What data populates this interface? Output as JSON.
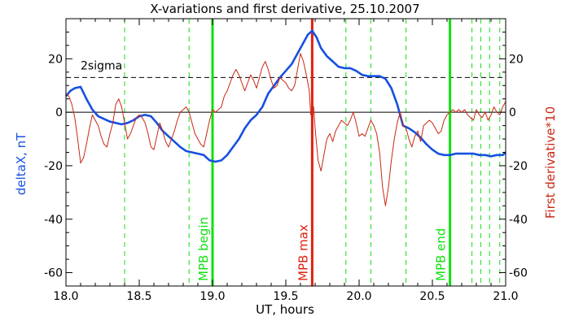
{
  "chart_data": {
    "type": "line",
    "title": "X-variations and first derivative, 25.10.2007",
    "xlabel": "UT, hours",
    "ylabel_left": "deltaX, nT",
    "ylabel_right": "First derivative*10",
    "xlim": [
      18.0,
      21.0
    ],
    "ylim": [
      -65,
      35
    ],
    "x_ticks": [
      18.0,
      18.5,
      19.0,
      19.5,
      20.0,
      20.5,
      21.0
    ],
    "x_tick_labels": [
      "18.0",
      "18.5",
      "19.0",
      "19.5",
      "20.0",
      "20.5",
      "21.0"
    ],
    "y_ticks": [
      -60,
      -40,
      -20,
      0,
      20
    ],
    "y_tick_labels": [
      "-60",
      "-40",
      "-20",
      "0",
      "20"
    ],
    "y2_tick_labels": [
      "-60",
      "-40",
      "-20",
      "0",
      "20"
    ],
    "colors": {
      "deltaX": "#1650e0",
      "derivative": "#c82814",
      "green": "#10e010",
      "red_marker": "#e02010",
      "axis": "#000000"
    },
    "reference_lines": [
      {
        "y": 0,
        "style": "solid"
      },
      {
        "y": 13,
        "style": "dashed",
        "label": "2sigma"
      }
    ],
    "markers": [
      {
        "x": 19.0,
        "label": "MPB begin",
        "color": "#10e010"
      },
      {
        "x": 19.68,
        "label": "MPB max",
        "color": "#e02010"
      },
      {
        "x": 20.62,
        "label": "MPB end",
        "color": "#10e010"
      }
    ],
    "dashed_verticals": [
      18.4,
      18.84,
      19.91,
      20.08,
      20.32,
      20.77,
      20.83,
      20.89,
      20.96
    ],
    "series": [
      {
        "key": "deltaX",
        "axis": "left",
        "x": [
          18.0,
          18.03,
          18.06,
          18.1,
          18.14,
          18.18,
          18.22,
          18.26,
          18.3,
          18.34,
          18.38,
          18.42,
          18.46,
          18.5,
          18.54,
          18.58,
          18.62,
          18.66,
          18.7,
          18.74,
          18.78,
          18.82,
          18.86,
          18.9,
          18.94,
          18.98,
          19.02,
          19.06,
          19.1,
          19.14,
          19.18,
          19.22,
          19.26,
          19.3,
          19.34,
          19.38,
          19.42,
          19.46,
          19.5,
          19.54,
          19.58,
          19.62,
          19.65,
          19.68,
          19.71,
          19.74,
          19.78,
          19.82,
          19.86,
          19.9,
          19.94,
          19.98,
          20.02,
          20.06,
          20.1,
          20.14,
          20.18,
          20.22,
          20.26,
          20.3,
          20.34,
          20.38,
          20.42,
          20.46,
          20.5,
          20.54,
          20.58,
          20.62,
          20.66,
          20.7,
          20.74,
          20.78,
          20.82,
          20.86,
          20.9,
          20.94,
          20.98,
          21.0
        ],
        "y": [
          6,
          8,
          9,
          9.5,
          5,
          1,
          -1.5,
          -2.5,
          -3.5,
          -4,
          -4.5,
          -4,
          -3,
          -1.5,
          -1,
          -1.5,
          -4,
          -7,
          -9,
          -11,
          -13,
          -14.5,
          -15,
          -15.5,
          -16,
          -18,
          -18.5,
          -18,
          -16,
          -13,
          -10,
          -6,
          -3,
          -1,
          2,
          7,
          10,
          13,
          15.5,
          18,
          22,
          26,
          29,
          30.5,
          28,
          24,
          21,
          19,
          17,
          16.5,
          16.5,
          15.5,
          14,
          13.5,
          13.5,
          13.5,
          12.5,
          9,
          3,
          -5,
          -6,
          -7.5,
          -9.5,
          -12,
          -14,
          -15.5,
          -16,
          -16,
          -15.5,
          -15.5,
          -15.5,
          -15.5,
          -16,
          -16,
          -16.5,
          -16,
          -16,
          -15
        ]
      },
      {
        "key": "derivative",
        "axis": "right",
        "x": [
          18.0,
          18.02,
          18.04,
          18.06,
          18.08,
          18.1,
          18.12,
          18.14,
          18.16,
          18.18,
          18.2,
          18.22,
          18.24,
          18.26,
          18.28,
          18.3,
          18.32,
          18.34,
          18.36,
          18.38,
          18.4,
          18.42,
          18.44,
          18.46,
          18.48,
          18.5,
          18.52,
          18.54,
          18.56,
          18.58,
          18.6,
          18.62,
          18.64,
          18.66,
          18.68,
          18.7,
          18.72,
          18.74,
          18.76,
          18.78,
          18.8,
          18.82,
          18.84,
          18.86,
          18.88,
          18.9,
          18.92,
          18.94,
          18.96,
          18.98,
          19.0,
          19.02,
          19.04,
          19.06,
          19.08,
          19.1,
          19.12,
          19.14,
          19.16,
          19.18,
          19.2,
          19.22,
          19.24,
          19.26,
          19.28,
          19.3,
          19.32,
          19.34,
          19.36,
          19.38,
          19.4,
          19.42,
          19.44,
          19.46,
          19.48,
          19.5,
          19.52,
          19.54,
          19.56,
          19.58,
          19.6,
          19.62,
          19.64,
          19.66,
          19.67,
          19.68,
          19.69,
          19.7,
          19.72,
          19.74,
          19.76,
          19.78,
          19.8,
          19.82,
          19.84,
          19.86,
          19.88,
          19.9,
          19.92,
          19.94,
          19.96,
          19.98,
          20.0,
          20.02,
          20.04,
          20.06,
          20.08,
          20.1,
          20.12,
          20.14,
          20.16,
          20.18,
          20.2,
          20.22,
          20.24,
          20.26,
          20.28,
          20.3,
          20.32,
          20.34,
          20.36,
          20.38,
          20.4,
          20.42,
          20.44,
          20.46,
          20.48,
          20.5,
          20.52,
          20.54,
          20.56,
          20.58,
          20.6,
          20.62,
          20.64,
          20.66,
          20.68,
          20.7,
          20.72,
          20.74,
          20.76,
          20.78,
          20.8,
          20.82,
          20.84,
          20.86,
          20.88,
          20.9,
          20.92,
          20.94,
          20.96,
          20.98,
          21.0
        ],
        "y": [
          7,
          6,
          3,
          -2,
          -10,
          -19,
          -17,
          -12,
          -6,
          -1,
          -3,
          -5,
          -9,
          -12,
          -13,
          -8,
          -4,
          3,
          5,
          2,
          -4,
          -10,
          -8,
          -5,
          -2,
          -1,
          -2,
          -4,
          -8,
          -13,
          -14,
          -9,
          -4,
          -7,
          -11,
          -13,
          -10,
          -7,
          -3,
          0,
          1,
          2,
          0,
          -4,
          -8,
          -10,
          -12,
          -13,
          -8,
          -3,
          1,
          0,
          1,
          2,
          6,
          8,
          11,
          14,
          16,
          14,
          11,
          8,
          11,
          14,
          12,
          9,
          13,
          17,
          19,
          16,
          12,
          9,
          10,
          13,
          12,
          11,
          9,
          8,
          10,
          16,
          22,
          19,
          14,
          8,
          -1,
          0,
          2,
          -6,
          -18,
          -22,
          -16,
          -10,
          -8,
          -11,
          -7,
          -5,
          -3,
          -4,
          -5,
          -3,
          0,
          -4,
          -9,
          -8,
          -9,
          -6,
          -3,
          -5,
          -8,
          -15,
          -28,
          -35,
          -28,
          -18,
          -10,
          -4,
          0,
          -5,
          -6,
          -10,
          -13,
          -9,
          -7,
          -11,
          -5,
          -4,
          -3,
          -4,
          -6,
          -8,
          -7,
          -3,
          -1,
          0,
          1,
          0,
          1,
          0,
          1,
          -1,
          -2,
          -3,
          1,
          -1,
          -2,
          0,
          -3,
          -1,
          2,
          0,
          -1,
          2,
          4
        ]
      }
    ]
  }
}
